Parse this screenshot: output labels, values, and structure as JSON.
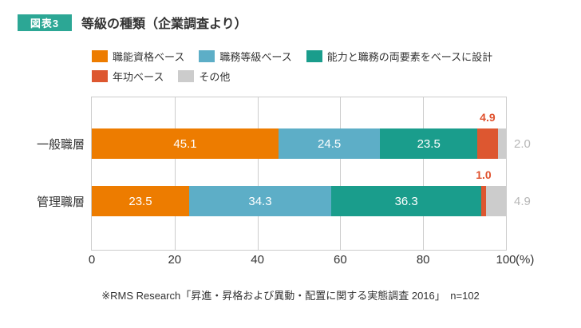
{
  "header": {
    "badge": "図表3",
    "title": "等級の種類（企業調査より）"
  },
  "chart_data": {
    "type": "bar",
    "stacked": true,
    "orientation": "horizontal",
    "title": "等級の種類（企業調査より）",
    "categories": [
      "一般職層",
      "管理職層"
    ],
    "series": [
      {
        "name": "職能資格ベース",
        "color": "#ED7C00",
        "values": [
          45.1,
          23.5
        ],
        "label_position": "inside",
        "label_color": "#FFFFFF"
      },
      {
        "name": "職務等級ベース",
        "color": "#5DAEC7",
        "values": [
          24.5,
          34.3
        ],
        "label_position": "inside",
        "label_color": "#FFFFFF"
      },
      {
        "name": "能力と職務の両要素をベースに設計",
        "color": "#1A9D8C",
        "values": [
          23.5,
          36.3
        ],
        "label_position": "inside",
        "label_color": "#FFFFFF"
      },
      {
        "name": "年功ベース",
        "color": "#DD5730",
        "values": [
          4.9,
          1.0
        ],
        "label_position": "above",
        "label_color": "#E0512D"
      },
      {
        "name": "その他",
        "color": "#CCCCCC",
        "values": [
          2.0,
          4.9
        ],
        "label_position": "right",
        "label_color": "#B7B7B7"
      }
    ],
    "x_ticks": [
      0,
      20,
      40,
      60,
      80,
      100
    ],
    "x_unit": "(%)",
    "xlim": [
      0,
      100
    ],
    "grid": true,
    "legend_position": "top"
  },
  "footnote": "※RMS Research「昇進・昇格および異動・配置に関する実態調査 2016」　n=102",
  "colors": {
    "badge_bg": "#2CA795",
    "grid": "#CCCCCC",
    "text": "#333333"
  }
}
